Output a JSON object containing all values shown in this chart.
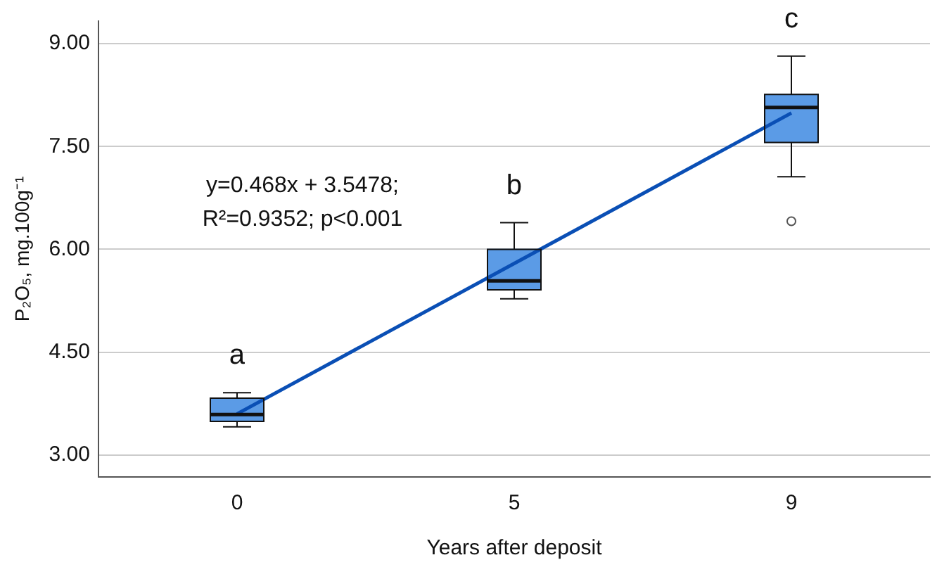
{
  "chart_data": {
    "type": "box",
    "xlabel": "Years after deposit",
    "ylabel": "P₂O₅, mg.100g⁻¹",
    "categories": [
      "0",
      "5",
      "9"
    ],
    "ylim": [
      2.68,
      9.33
    ],
    "yticks": [
      {
        "value": 3,
        "label": "3.00"
      },
      {
        "value": 4.5,
        "label": "4.50"
      },
      {
        "value": 6,
        "label": "6.00"
      },
      {
        "value": 7.5,
        "label": "7.50"
      },
      {
        "value": 9,
        "label": "9.00"
      }
    ],
    "grid": "y",
    "legend": false,
    "series": [
      {
        "type": "box",
        "color": "#5b9be6",
        "boxes": [
          {
            "low": 3.41,
            "q1": 3.49,
            "median": 3.59,
            "q3": 3.83,
            "high": 3.91
          },
          {
            "low": 5.28,
            "q1": 5.41,
            "median": 5.54,
            "q3": 6.0,
            "high": 6.39
          },
          {
            "low": 7.06,
            "q1": 7.56,
            "median": 8.07,
            "q3": 8.26,
            "high": 8.82,
            "outliers": [
              6.41
            ]
          }
        ]
      },
      {
        "type": "line",
        "color": "#0a4fb5",
        "x": [
          "0",
          "9"
        ],
        "values": [
          3.6,
          7.99
        ]
      }
    ],
    "annotations": [
      "a",
      "b",
      "c",
      "y=0.468x + 3.5478;",
      "R²=0.9352; p<0.001"
    ]
  }
}
